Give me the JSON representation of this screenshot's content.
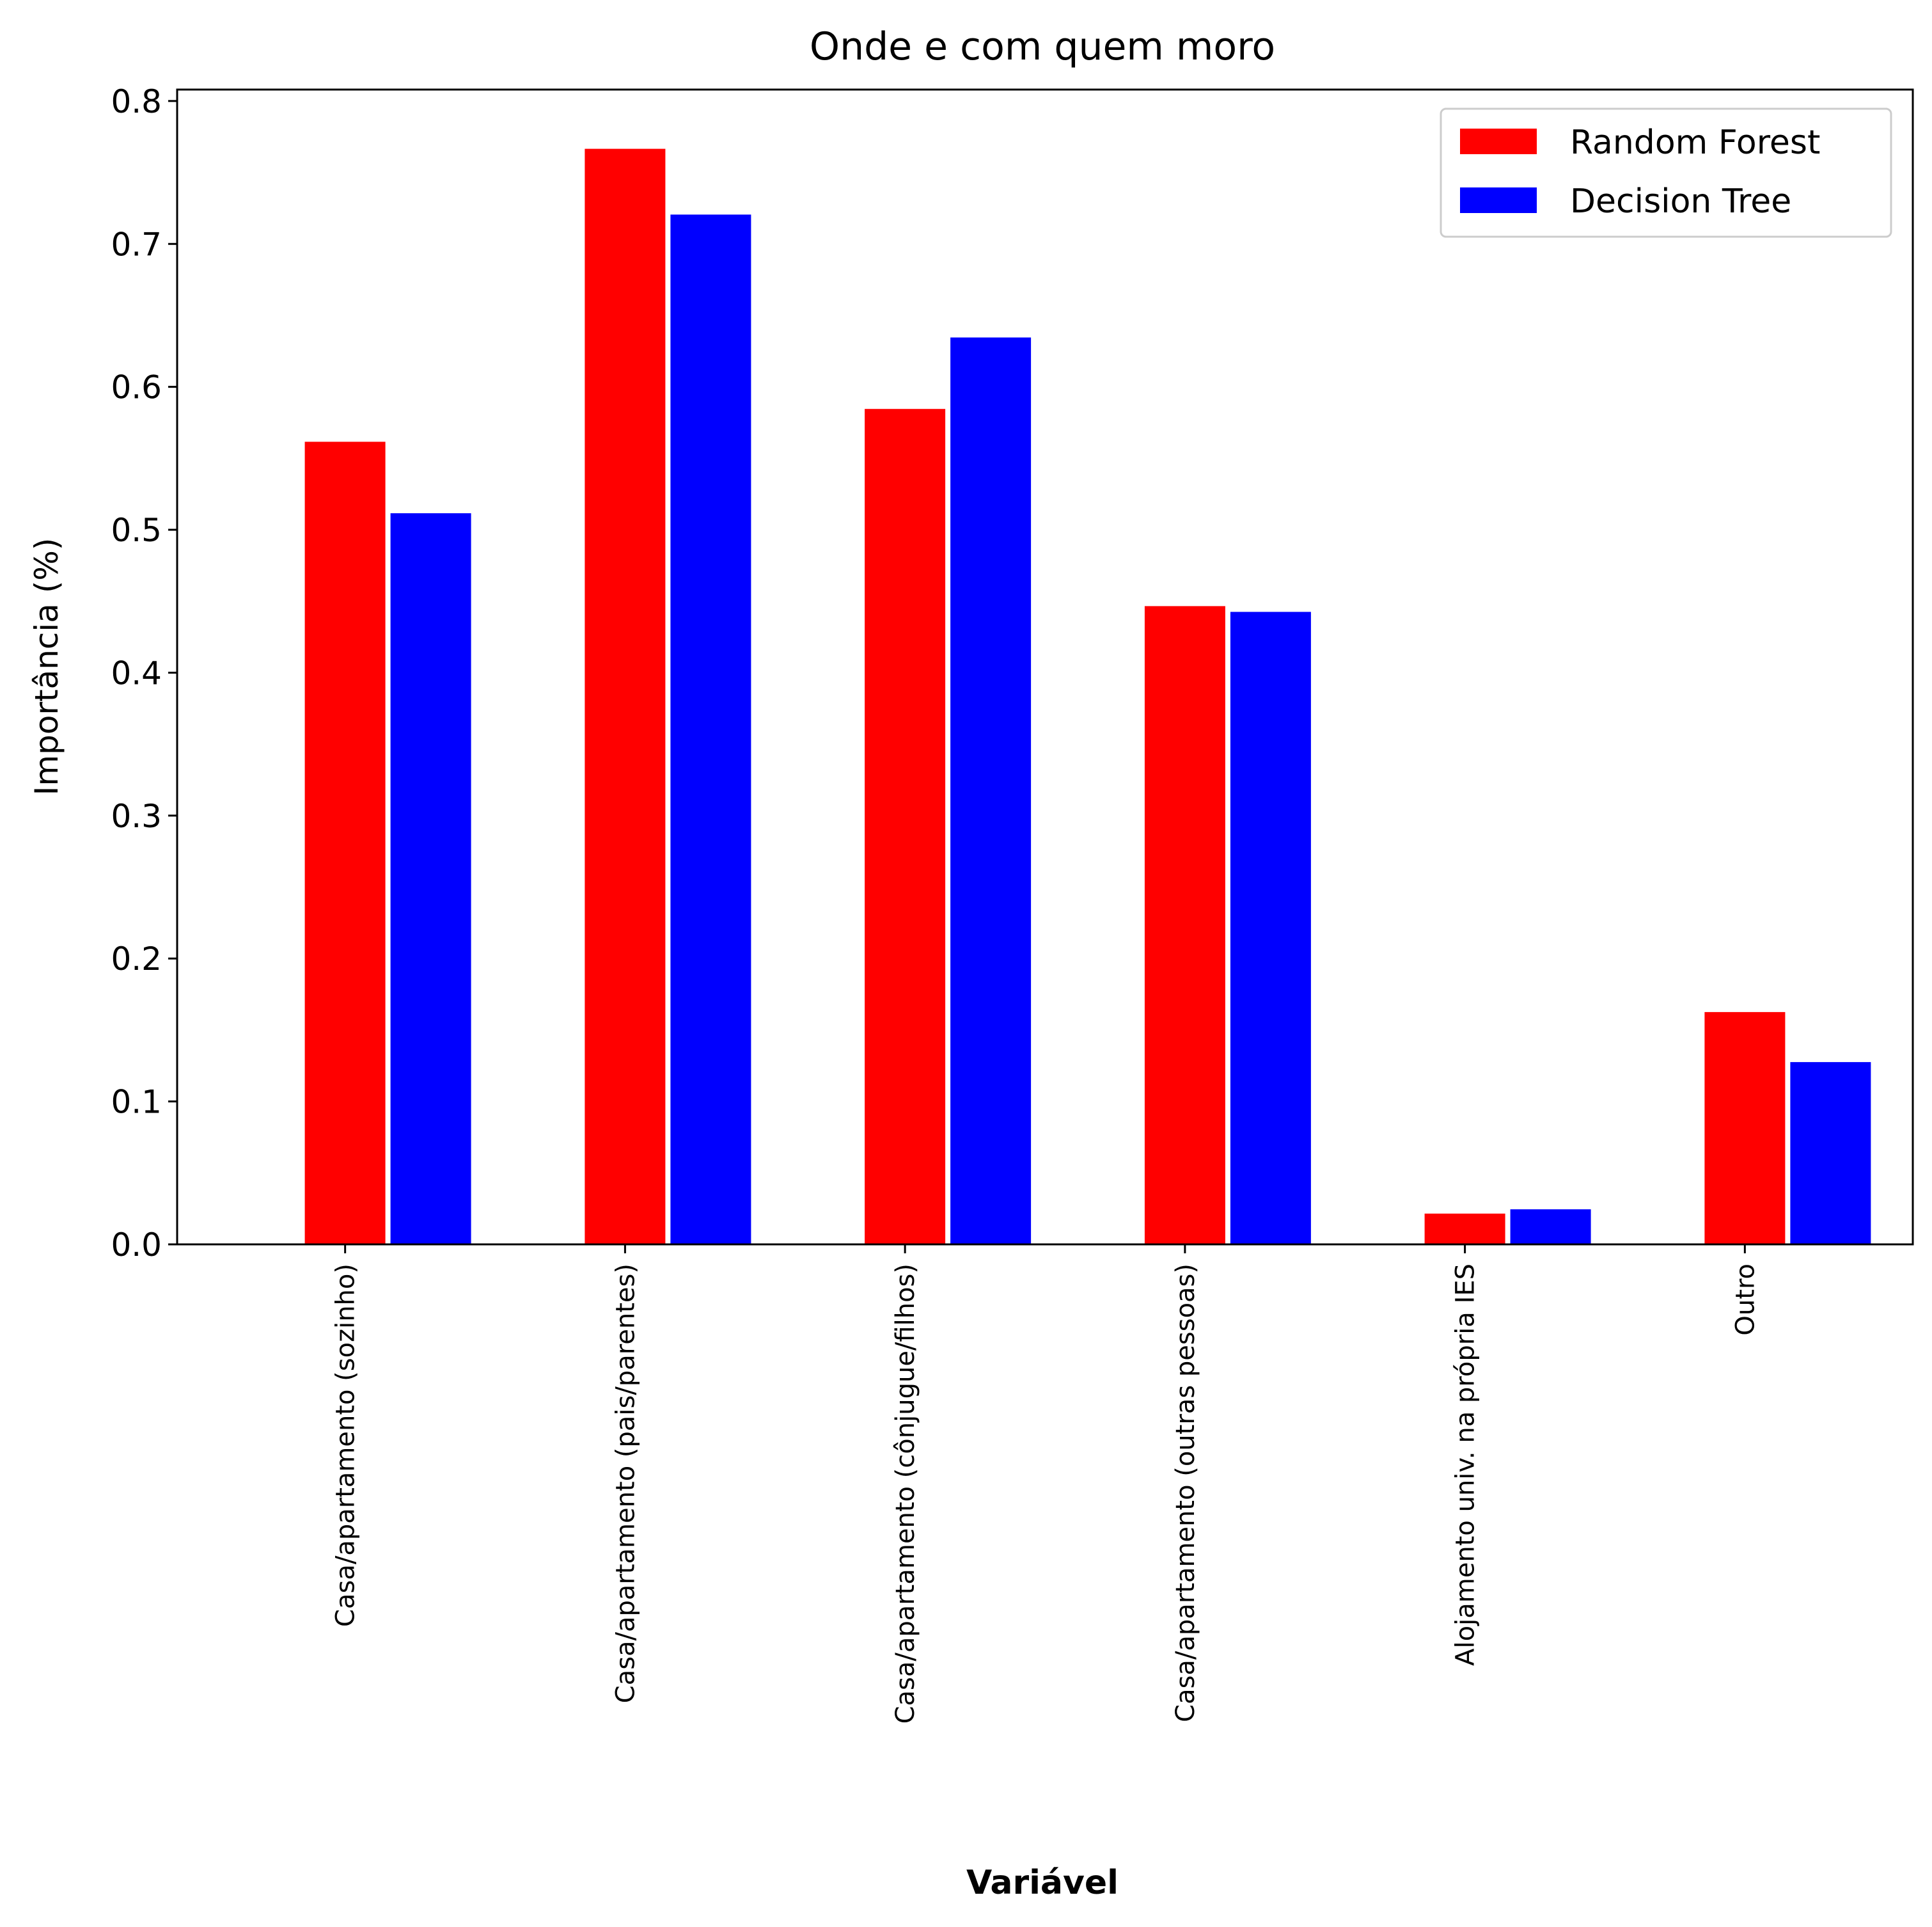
{
  "chart_data": {
    "type": "bar",
    "title": "Onde e com quem moro",
    "xlabel": "Variável",
    "ylabel": "Importância (%)",
    "ylim": [
      0,
      0.808
    ],
    "yticks": [
      0.0,
      0.1,
      0.2,
      0.3,
      0.4,
      0.5,
      0.6,
      0.7,
      0.8
    ],
    "ytick_labels": [
      "0.0",
      "0.1",
      "0.2",
      "0.3",
      "0.4",
      "0.5",
      "0.6",
      "0.7",
      "0.8"
    ],
    "categories": [
      "Casa/apartamento (sozinho)",
      "Casa/apartamento (pais/parentes)",
      "Casa/apartamento (cônjugue/filhos)",
      "Casa/apartamento (outras pessoas)",
      "Alojamento univ. na própria IES",
      "Outro"
    ],
    "series": [
      {
        "name": "Random Forest",
        "color": "#ff0000",
        "values": [
          0.562,
          0.767,
          0.585,
          0.447,
          0.022,
          0.163
        ]
      },
      {
        "name": "Decision Tree",
        "color": "#0000ff",
        "values": [
          0.512,
          0.721,
          0.635,
          0.443,
          0.025,
          0.128
        ]
      }
    ],
    "legend_position": "top-right",
    "grid": false
  }
}
